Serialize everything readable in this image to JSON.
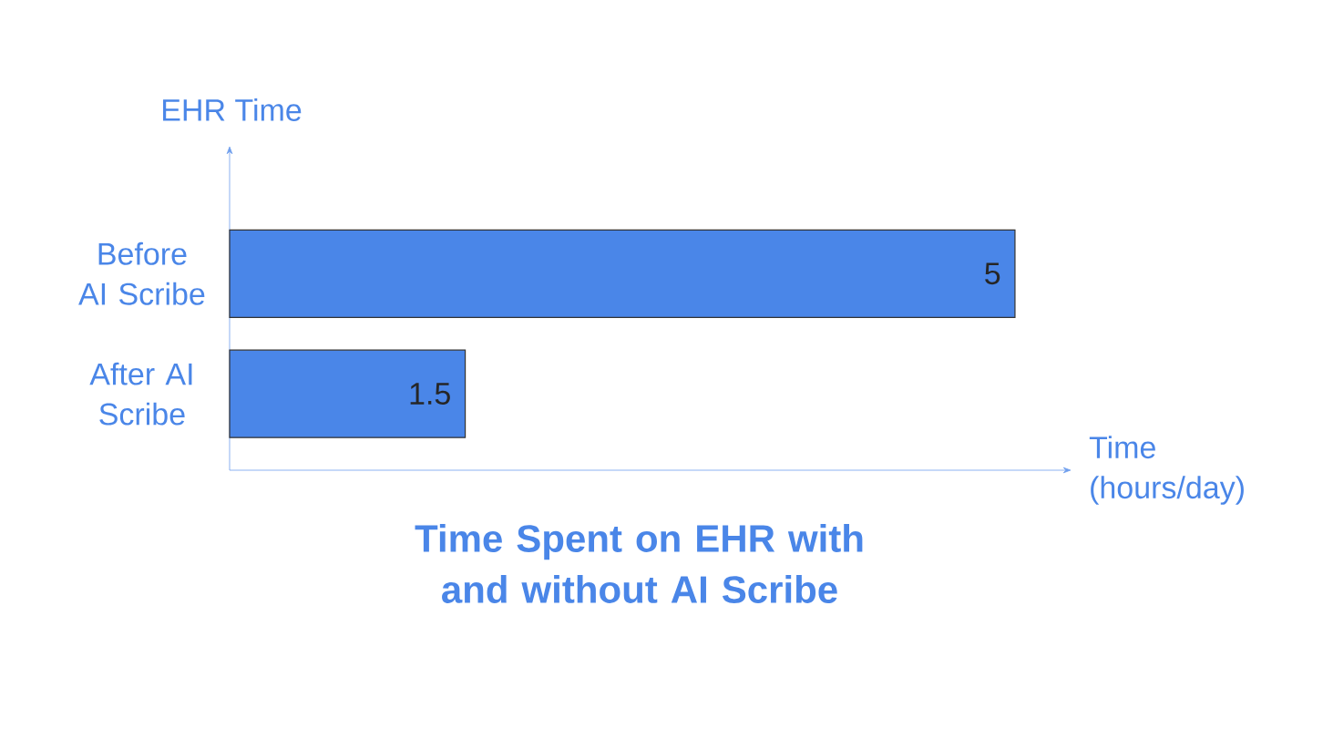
{
  "chart_data": {
    "type": "bar",
    "orientation": "horizontal",
    "title": "Time Spent on EHR with and without AI Scribe",
    "xlabel": "Time (hours/day)",
    "ylabel": "EHR Time",
    "categories": [
      "Before AI Scribe",
      "After AI Scribe"
    ],
    "values": [
      5,
      1.5
    ],
    "color": "#4a86e8",
    "data_labels": true
  }
}
